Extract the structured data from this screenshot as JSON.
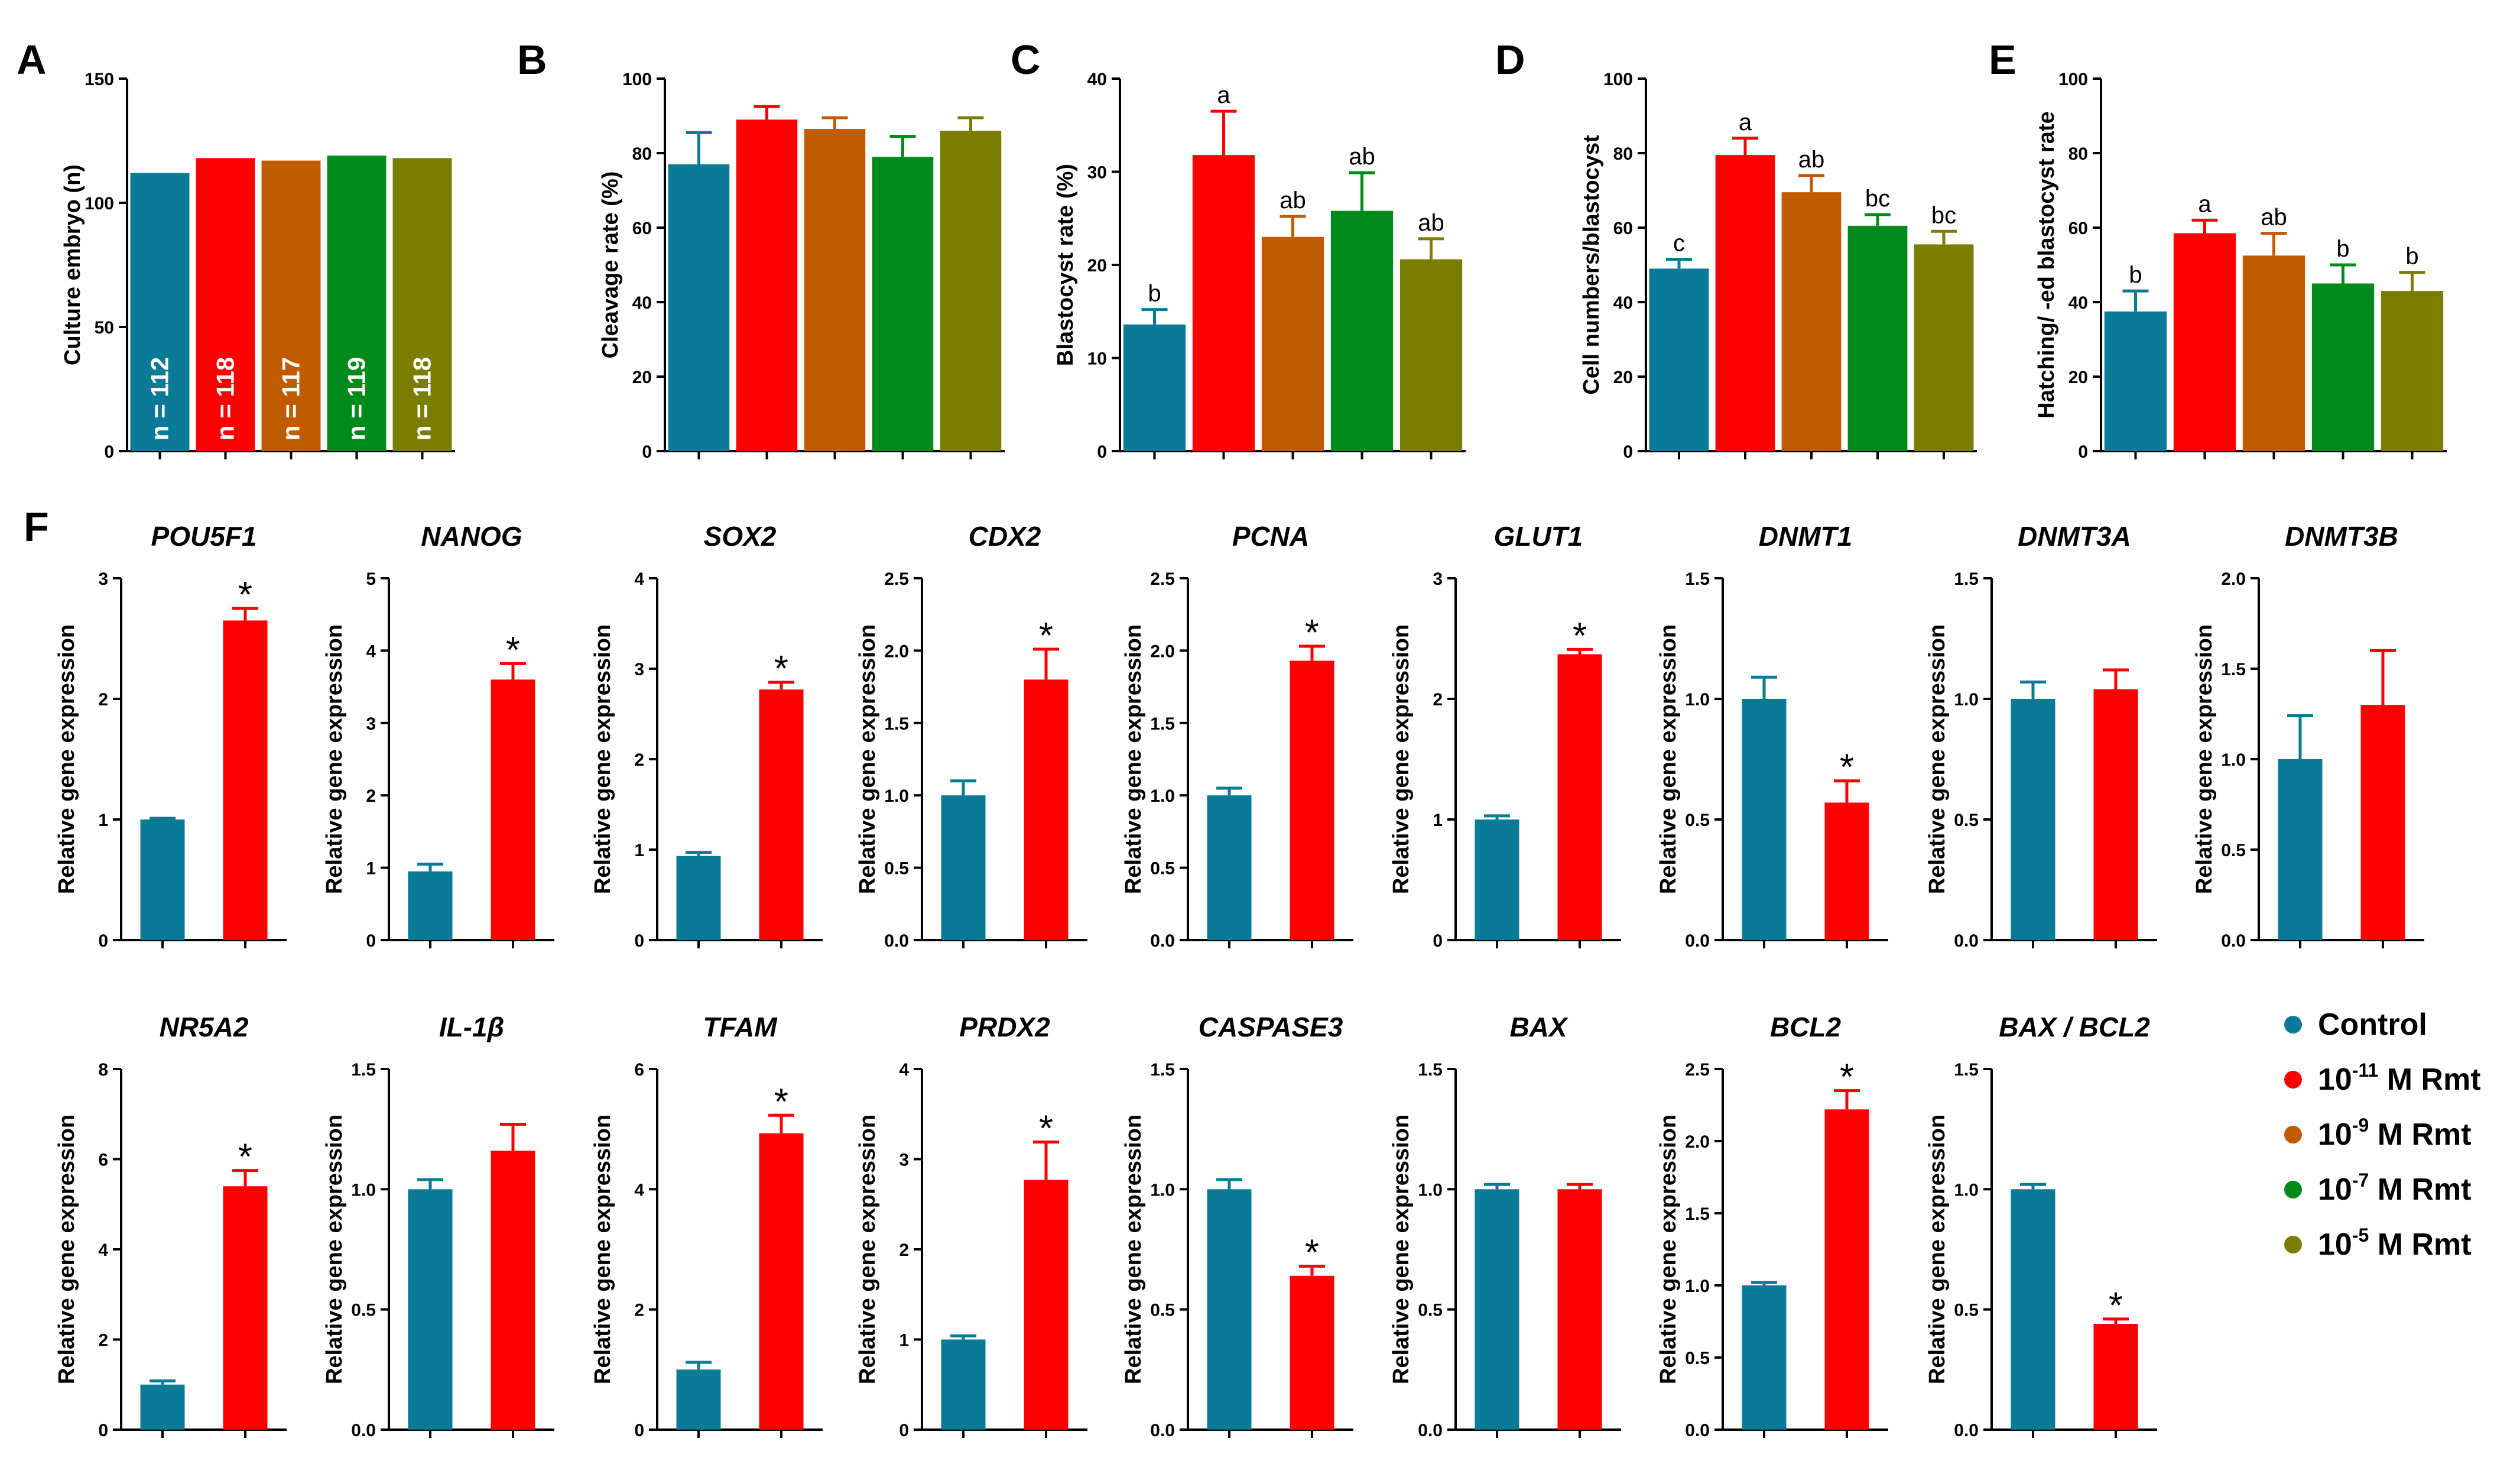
{
  "colors": {
    "control": "#0a7b96",
    "rmt_e11": "#ff0000",
    "rmt_e9": "#c25b00",
    "rmt_e7": "#008a1c",
    "rmt_e5": "#7b7d00"
  },
  "legend": {
    "items": [
      {
        "base": "Control",
        "sup": "",
        "rest": "",
        "color": "#0a7b96"
      },
      {
        "base": "10",
        "sup": "-11",
        "rest": " M Rmt",
        "color": "#ff0000"
      },
      {
        "base": "10",
        "sup": "-9",
        "rest": " M Rmt",
        "color": "#c25b00"
      },
      {
        "base": "10",
        "sup": "-7",
        "rest": " M Rmt",
        "color": "#008a1c"
      },
      {
        "base": "10",
        "sup": "-5",
        "rest": " M Rmt",
        "color": "#7b7d00"
      }
    ]
  },
  "panel_letters": [
    "A",
    "B",
    "C",
    "D",
    "E",
    "F"
  ],
  "chart_data": [
    {
      "type": "bar",
      "panel": "A",
      "title": "",
      "ylabel": "Culture embryo (n)",
      "ylim": [
        0,
        150
      ],
      "yticks": [
        0,
        50,
        100,
        150
      ],
      "categories": [
        "Control",
        "10^-11 M Rmt",
        "10^-9 M Rmt",
        "10^-7 M Rmt",
        "10^-5 M Rmt"
      ],
      "values": [
        112,
        118,
        117,
        119,
        118
      ],
      "errors": [
        0,
        0,
        0,
        0,
        0
      ],
      "bar_labels": [
        "n = 112",
        "n = 118",
        "n = 117",
        "n = 119",
        "n = 118"
      ],
      "annotations": []
    },
    {
      "type": "bar",
      "panel": "B",
      "title": "",
      "ylabel": "Cleavage rate (%)",
      "ylim": [
        0,
        100
      ],
      "yticks": [
        0,
        20,
        40,
        60,
        80,
        100
      ],
      "categories": [
        "Control",
        "10^-11 M Rmt",
        "10^-9 M Rmt",
        "10^-7 M Rmt",
        "10^-5 M Rmt"
      ],
      "values": [
        77,
        89,
        86.5,
        79,
        86
      ],
      "errors": [
        8.5,
        3.5,
        3,
        5.5,
        3.5
      ],
      "annotations": []
    },
    {
      "type": "bar",
      "panel": "C",
      "title": "",
      "ylabel": "Blastocyst rate (%)",
      "ylim": [
        0,
        40
      ],
      "yticks": [
        0,
        10,
        20,
        30,
        40
      ],
      "categories": [
        "Control",
        "10^-11 M Rmt",
        "10^-9 M Rmt",
        "10^-7 M Rmt",
        "10^-5 M Rmt"
      ],
      "values": [
        13.6,
        31.8,
        23,
        25.8,
        20.6
      ],
      "errors": [
        1.6,
        4.7,
        2.2,
        4.1,
        2.2
      ],
      "annotations": [
        "b",
        "a",
        "ab",
        "ab",
        "ab"
      ]
    },
    {
      "type": "bar",
      "panel": "D",
      "title": "",
      "ylabel": "Cell numbers/blastocyst",
      "ylim": [
        0,
        100
      ],
      "yticks": [
        0,
        20,
        40,
        60,
        80,
        100
      ],
      "categories": [
        "Control",
        "10^-11 M Rmt",
        "10^-9 M Rmt",
        "10^-7 M Rmt",
        "10^-5 M Rmt"
      ],
      "values": [
        49,
        79.5,
        69.5,
        60.5,
        55.5
      ],
      "errors": [
        2.5,
        4.5,
        4.5,
        3,
        3.5
      ],
      "annotations": [
        "c",
        "a",
        "ab",
        "bc",
        "bc"
      ]
    },
    {
      "type": "bar",
      "panel": "E",
      "title": "",
      "ylabel": "Hatching/ -ed blastocyst rate",
      "ylim": [
        0,
        100
      ],
      "yticks": [
        0,
        20,
        40,
        60,
        80,
        100
      ],
      "categories": [
        "Control",
        "10^-11 M Rmt",
        "10^-9 M Rmt",
        "10^-7 M Rmt",
        "10^-5 M Rmt"
      ],
      "values": [
        37.5,
        58.5,
        52.5,
        45,
        43
      ],
      "errors": [
        5.5,
        3.5,
        6,
        5,
        5
      ],
      "annotations": [
        "b",
        "a",
        "ab",
        "b",
        "b"
      ]
    },
    {
      "type": "bar",
      "panel": "F",
      "title": "POU5F1",
      "ylabel": "Relative gene expression",
      "ylim": [
        0,
        3
      ],
      "yticks": [
        0,
        1,
        2,
        3
      ],
      "categories": [
        "Control",
        "10^-11 M Rmt"
      ],
      "values": [
        1,
        2.65
      ],
      "errors": [
        0.01,
        0.1
      ],
      "annotations": [
        "",
        "*"
      ]
    },
    {
      "type": "bar",
      "panel": "F",
      "title": "NANOG",
      "ylabel": "Relative gene expression",
      "ylim": [
        0,
        5
      ],
      "yticks": [
        0,
        1,
        2,
        3,
        4,
        5
      ],
      "categories": [
        "Control",
        "10^-11 M Rmt"
      ],
      "values": [
        0.95,
        3.6
      ],
      "errors": [
        0.1,
        0.22
      ],
      "annotations": [
        "",
        "*"
      ]
    },
    {
      "type": "bar",
      "panel": "F",
      "title": "SOX2",
      "ylabel": "Relative gene expression",
      "ylim": [
        0,
        4
      ],
      "yticks": [
        0,
        1,
        2,
        3,
        4
      ],
      "categories": [
        "Control",
        "10^-11 M Rmt"
      ],
      "values": [
        0.93,
        2.77
      ],
      "errors": [
        0.04,
        0.08
      ],
      "annotations": [
        "",
        "*"
      ]
    },
    {
      "type": "bar",
      "panel": "F",
      "title": "CDX2",
      "ylabel": "Relative gene expression",
      "ylim": [
        0,
        2.5
      ],
      "yticks": [
        0,
        0.5,
        1.0,
        1.5,
        2.0,
        2.5
      ],
      "categories": [
        "Control",
        "10^-11 M Rmt"
      ],
      "values": [
        1.0,
        1.8
      ],
      "errors": [
        0.1,
        0.21
      ],
      "annotations": [
        "",
        "*"
      ]
    },
    {
      "type": "bar",
      "panel": "F",
      "title": "PCNA",
      "ylabel": "Relative gene expression",
      "ylim": [
        0,
        2.5
      ],
      "yticks": [
        0,
        0.5,
        1.0,
        1.5,
        2.0,
        2.5
      ],
      "categories": [
        "Control",
        "10^-11 M Rmt"
      ],
      "values": [
        1.0,
        1.93
      ],
      "errors": [
        0.05,
        0.1
      ],
      "annotations": [
        "",
        "*"
      ]
    },
    {
      "type": "bar",
      "panel": "F",
      "title": "GLUT1",
      "ylabel": "Relative gene expression",
      "ylim": [
        0,
        3
      ],
      "yticks": [
        0,
        1,
        2,
        3
      ],
      "categories": [
        "Control",
        "10^-11 M Rmt"
      ],
      "values": [
        1.0,
        2.37
      ],
      "errors": [
        0.03,
        0.04
      ],
      "annotations": [
        "",
        "*"
      ]
    },
    {
      "type": "bar",
      "panel": "F",
      "title": "DNMT1",
      "ylabel": "Relative gene expression",
      "ylim": [
        0,
        1.5
      ],
      "yticks": [
        0,
        0.5,
        1.0,
        1.5
      ],
      "categories": [
        "Control",
        "10^-11 M Rmt"
      ],
      "values": [
        1.0,
        0.57
      ],
      "errors": [
        0.09,
        0.09
      ],
      "annotations": [
        "",
        "*"
      ]
    },
    {
      "type": "bar",
      "panel": "F",
      "title": "DNMT3A",
      "ylabel": "Relative gene expression",
      "ylim": [
        0,
        1.5
      ],
      "yticks": [
        0,
        0.5,
        1.0,
        1.5
      ],
      "categories": [
        "Control",
        "10^-11 M Rmt"
      ],
      "values": [
        1.0,
        1.04
      ],
      "errors": [
        0.07,
        0.08
      ],
      "annotations": [
        "",
        ""
      ]
    },
    {
      "type": "bar",
      "panel": "F",
      "title": "DNMT3B",
      "ylabel": "Relative gene expression",
      "ylim": [
        0,
        2.0
      ],
      "yticks": [
        0,
        0.5,
        1.0,
        1.5,
        2.0
      ],
      "categories": [
        "Control",
        "10^-11 M Rmt"
      ],
      "values": [
        1.0,
        1.3
      ],
      "errors": [
        0.24,
        0.3
      ],
      "annotations": [
        "",
        ""
      ]
    },
    {
      "type": "bar",
      "panel": "F",
      "title": "NR5A2",
      "ylabel": "Relative gene expression",
      "ylim": [
        0,
        8
      ],
      "yticks": [
        0,
        2,
        4,
        6,
        8
      ],
      "categories": [
        "Control",
        "10^-11 M Rmt"
      ],
      "values": [
        1.0,
        5.4
      ],
      "errors": [
        0.08,
        0.35
      ],
      "annotations": [
        "",
        "*"
      ]
    },
    {
      "type": "bar",
      "panel": "F",
      "title": "IL-1β",
      "ylabel": "Relative gene expression",
      "ylim": [
        0,
        1.5
      ],
      "yticks": [
        0,
        0.5,
        1.0,
        1.5
      ],
      "categories": [
        "Control",
        "10^-11 M Rmt"
      ],
      "values": [
        1.0,
        1.16
      ],
      "errors": [
        0.04,
        0.11
      ],
      "annotations": [
        "",
        ""
      ]
    },
    {
      "type": "bar",
      "panel": "F",
      "title": "TFAM",
      "ylabel": "Relative gene expression",
      "ylim": [
        0,
        6
      ],
      "yticks": [
        0,
        2,
        4,
        6
      ],
      "categories": [
        "Control",
        "10^-11 M Rmt"
      ],
      "values": [
        1.0,
        4.93
      ],
      "errors": [
        0.12,
        0.3
      ],
      "annotations": [
        "",
        "*"
      ]
    },
    {
      "type": "bar",
      "panel": "F",
      "title": "PRDX2",
      "ylabel": "Relative gene expression",
      "ylim": [
        0,
        4
      ],
      "yticks": [
        0,
        1,
        2,
        3,
        4
      ],
      "categories": [
        "Control",
        "10^-11 M Rmt"
      ],
      "values": [
        1.0,
        2.77
      ],
      "errors": [
        0.04,
        0.42
      ],
      "annotations": [
        "",
        "*"
      ]
    },
    {
      "type": "bar",
      "panel": "F",
      "title": "CASPASE3",
      "ylabel": "Relative gene expression",
      "ylim": [
        0,
        1.5
      ],
      "yticks": [
        0,
        0.5,
        1.0,
        1.5
      ],
      "categories": [
        "Control",
        "10^-11 M Rmt"
      ],
      "values": [
        1.0,
        0.64
      ],
      "errors": [
        0.04,
        0.04
      ],
      "annotations": [
        "",
        "*"
      ]
    },
    {
      "type": "bar",
      "panel": "F",
      "title": "BAX",
      "ylabel": "Relative gene expression",
      "ylim": [
        0,
        1.5
      ],
      "yticks": [
        0,
        0.5,
        1.0,
        1.5
      ],
      "categories": [
        "Control",
        "10^-11 M Rmt"
      ],
      "values": [
        1.0,
        1.0
      ],
      "errors": [
        0.02,
        0.02
      ],
      "annotations": [
        "",
        ""
      ]
    },
    {
      "type": "bar",
      "panel": "F",
      "title": "BCL2",
      "ylabel": "Relative gene expression",
      "ylim": [
        0,
        2.5
      ],
      "yticks": [
        0,
        0.5,
        1.0,
        1.5,
        2.0,
        2.5
      ],
      "categories": [
        "Control",
        "10^-11 M Rmt"
      ],
      "values": [
        1.0,
        2.22
      ],
      "errors": [
        0.02,
        0.13
      ],
      "annotations": [
        "",
        "*"
      ]
    },
    {
      "type": "bar",
      "panel": "F",
      "title": "BAX / BCL2",
      "ylabel": "Relative gene expression",
      "ylim": [
        0,
        1.5
      ],
      "yticks": [
        0,
        0.5,
        1.0,
        1.5
      ],
      "categories": [
        "Control",
        "10^-11 M Rmt"
      ],
      "values": [
        1.0,
        0.44
      ],
      "errors": [
        0.02,
        0.02
      ],
      "annotations": [
        "",
        "*"
      ]
    }
  ]
}
